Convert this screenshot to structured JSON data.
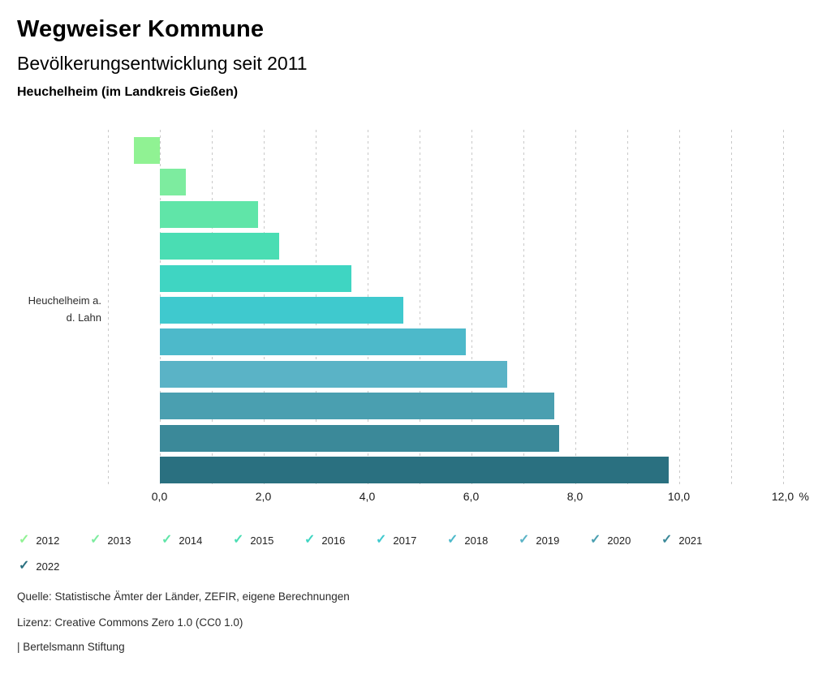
{
  "header": {
    "title": "Wegweiser Kommune",
    "subtitle": "Bevölkerungsentwicklung seit 2011",
    "location": "Heuchelheim (im Landkreis Gießen)"
  },
  "chart_data": {
    "type": "bar",
    "orientation": "horizontal",
    "title": "Bevölkerungsentwicklung seit 2011",
    "category_label_lines": [
      "Heuchelheim a.",
      "d. Lahn"
    ],
    "series": [
      {
        "name": "2012",
        "value": -0.5,
        "color": "#90F293"
      },
      {
        "name": "2013",
        "value": 0.5,
        "color": "#7DEC9F"
      },
      {
        "name": "2014",
        "value": 1.9,
        "color": "#60E5A8"
      },
      {
        "name": "2015",
        "value": 2.3,
        "color": "#4ADDB3"
      },
      {
        "name": "2016",
        "value": 3.7,
        "color": "#3FD5C2"
      },
      {
        "name": "2017",
        "value": 4.7,
        "color": "#3FC9CE"
      },
      {
        "name": "2018",
        "value": 5.9,
        "color": "#4DB9CA"
      },
      {
        "name": "2019",
        "value": 6.7,
        "color": "#5AB3C6"
      },
      {
        "name": "2020",
        "value": 7.6,
        "color": "#4A9FB0"
      },
      {
        "name": "2021",
        "value": 7.7,
        "color": "#3B8999"
      },
      {
        "name": "2022",
        "value": 9.8,
        "color": "#2A7080"
      }
    ],
    "x_axis": {
      "min": -1.0,
      "max": 12.0,
      "gridline_step": 1.0,
      "tick_values": [
        0,
        2,
        4,
        6,
        8,
        10,
        12
      ],
      "tick_labels": [
        "0,0",
        "2,0",
        "4,0",
        "6,0",
        "8,0",
        "10,0",
        "12,0"
      ],
      "unit_label": "%"
    },
    "grid": true,
    "legend_position": "bottom",
    "legend_check_glyph": "✓"
  },
  "footer": {
    "source": "Quelle: Statistische Ämter der Länder, ZEFIR, eigene Berechnungen",
    "license": "Lizenz: Creative Commons Zero 1.0 (CC0 1.0)",
    "attribution": "| Bertelsmann Stiftung"
  }
}
